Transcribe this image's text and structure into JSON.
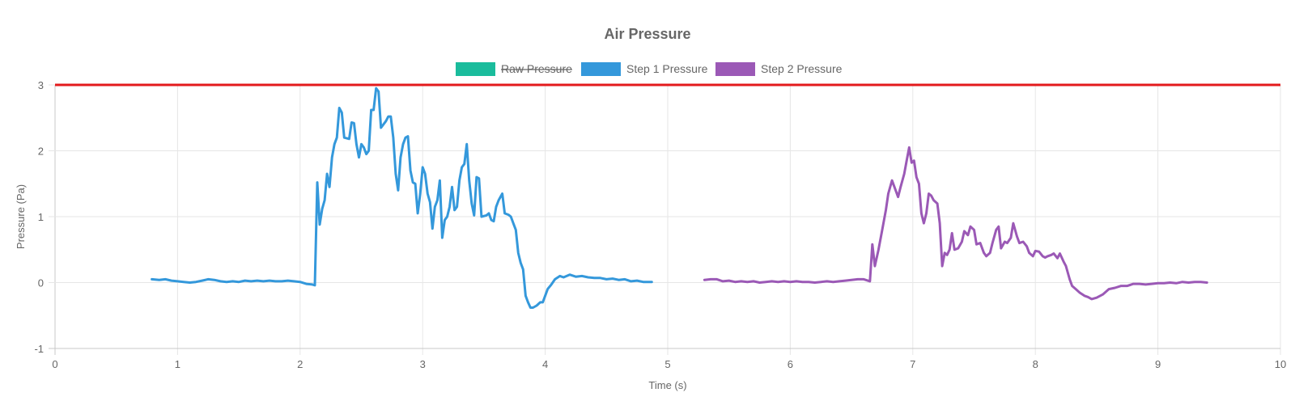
{
  "chart_data": {
    "type": "line",
    "title": "Air Pressure",
    "xlabel": "Time (s)",
    "ylabel": "Pressure (Pa)",
    "xlim": [
      0,
      10
    ],
    "ylim": [
      -1,
      3
    ],
    "x_ticks": [
      "0",
      "1",
      "2",
      "3",
      "4",
      "5",
      "6",
      "7",
      "8",
      "9",
      "10"
    ],
    "y_ticks": [
      "3",
      "2",
      "1",
      "0",
      "-1"
    ],
    "legend_position": "top-center",
    "grid": true,
    "threshold_line": {
      "value": 3,
      "color": "#e31a1c"
    },
    "series": [
      {
        "name": "Raw Pressure",
        "color": "#1abc9c",
        "hidden": true,
        "points": []
      },
      {
        "name": "Step 1 Pressure",
        "color": "#3498db",
        "hidden": false,
        "points": [
          [
            0.79,
            0.05
          ],
          [
            0.85,
            0.04
          ],
          [
            0.9,
            0.05
          ],
          [
            0.95,
            0.03
          ],
          [
            1.0,
            0.02
          ],
          [
            1.05,
            0.01
          ],
          [
            1.1,
            0.0
          ],
          [
            1.15,
            0.01
          ],
          [
            1.2,
            0.03
          ],
          [
            1.25,
            0.05
          ],
          [
            1.3,
            0.04
          ],
          [
            1.35,
            0.02
          ],
          [
            1.4,
            0.01
          ],
          [
            1.45,
            0.02
          ],
          [
            1.5,
            0.01
          ],
          [
            1.55,
            0.03
          ],
          [
            1.6,
            0.02
          ],
          [
            1.65,
            0.03
          ],
          [
            1.7,
            0.02
          ],
          [
            1.75,
            0.03
          ],
          [
            1.8,
            0.02
          ],
          [
            1.85,
            0.02
          ],
          [
            1.9,
            0.03
          ],
          [
            1.95,
            0.02
          ],
          [
            2.0,
            0.01
          ],
          [
            2.05,
            -0.02
          ],
          [
            2.1,
            -0.03
          ],
          [
            2.12,
            -0.04
          ],
          [
            2.14,
            1.52
          ],
          [
            2.16,
            0.88
          ],
          [
            2.18,
            1.12
          ],
          [
            2.2,
            1.25
          ],
          [
            2.22,
            1.65
          ],
          [
            2.24,
            1.45
          ],
          [
            2.26,
            1.9
          ],
          [
            2.28,
            2.1
          ],
          [
            2.3,
            2.2
          ],
          [
            2.32,
            2.65
          ],
          [
            2.34,
            2.58
          ],
          [
            2.36,
            2.2
          ],
          [
            2.4,
            2.18
          ],
          [
            2.42,
            2.43
          ],
          [
            2.44,
            2.42
          ],
          [
            2.46,
            2.1
          ],
          [
            2.48,
            1.9
          ],
          [
            2.5,
            2.1
          ],
          [
            2.52,
            2.05
          ],
          [
            2.54,
            1.95
          ],
          [
            2.56,
            2.0
          ],
          [
            2.58,
            2.62
          ],
          [
            2.6,
            2.62
          ],
          [
            2.62,
            2.95
          ],
          [
            2.64,
            2.9
          ],
          [
            2.66,
            2.35
          ],
          [
            2.7,
            2.45
          ],
          [
            2.72,
            2.52
          ],
          [
            2.74,
            2.52
          ],
          [
            2.76,
            2.2
          ],
          [
            2.78,
            1.65
          ],
          [
            2.8,
            1.4
          ],
          [
            2.82,
            1.9
          ],
          [
            2.84,
            2.1
          ],
          [
            2.86,
            2.2
          ],
          [
            2.88,
            2.22
          ],
          [
            2.9,
            1.7
          ],
          [
            2.92,
            1.52
          ],
          [
            2.94,
            1.5
          ],
          [
            2.96,
            1.05
          ],
          [
            2.98,
            1.35
          ],
          [
            3.0,
            1.75
          ],
          [
            3.02,
            1.65
          ],
          [
            3.04,
            1.35
          ],
          [
            3.06,
            1.22
          ],
          [
            3.08,
            0.82
          ],
          [
            3.1,
            1.15
          ],
          [
            3.12,
            1.25
          ],
          [
            3.14,
            1.55
          ],
          [
            3.16,
            0.68
          ],
          [
            3.18,
            0.95
          ],
          [
            3.2,
            1.0
          ],
          [
            3.22,
            1.15
          ],
          [
            3.24,
            1.45
          ],
          [
            3.26,
            1.1
          ],
          [
            3.28,
            1.15
          ],
          [
            3.3,
            1.55
          ],
          [
            3.32,
            1.75
          ],
          [
            3.34,
            1.8
          ],
          [
            3.36,
            2.1
          ],
          [
            3.38,
            1.55
          ],
          [
            3.4,
            1.2
          ],
          [
            3.42,
            1.02
          ],
          [
            3.44,
            1.6
          ],
          [
            3.46,
            1.58
          ],
          [
            3.48,
            1.0
          ],
          [
            3.52,
            1.02
          ],
          [
            3.54,
            1.05
          ],
          [
            3.56,
            0.95
          ],
          [
            3.58,
            0.93
          ],
          [
            3.6,
            1.15
          ],
          [
            3.62,
            1.25
          ],
          [
            3.65,
            1.35
          ],
          [
            3.67,
            1.05
          ],
          [
            3.7,
            1.03
          ],
          [
            3.72,
            1.0
          ],
          [
            3.74,
            0.9
          ],
          [
            3.76,
            0.8
          ],
          [
            3.78,
            0.45
          ],
          [
            3.8,
            0.3
          ],
          [
            3.82,
            0.2
          ],
          [
            3.84,
            -0.2
          ],
          [
            3.86,
            -0.3
          ],
          [
            3.88,
            -0.38
          ],
          [
            3.9,
            -0.38
          ],
          [
            3.93,
            -0.35
          ],
          [
            3.96,
            -0.3
          ],
          [
            3.98,
            -0.3
          ],
          [
            4.0,
            -0.2
          ],
          [
            4.02,
            -0.1
          ],
          [
            4.05,
            -0.03
          ],
          [
            4.08,
            0.05
          ],
          [
            4.12,
            0.1
          ],
          [
            4.15,
            0.08
          ],
          [
            4.2,
            0.12
          ],
          [
            4.25,
            0.09
          ],
          [
            4.3,
            0.1
          ],
          [
            4.35,
            0.08
          ],
          [
            4.4,
            0.07
          ],
          [
            4.45,
            0.07
          ],
          [
            4.5,
            0.05
          ],
          [
            4.55,
            0.06
          ],
          [
            4.6,
            0.04
          ],
          [
            4.65,
            0.05
          ],
          [
            4.7,
            0.02
          ],
          [
            4.75,
            0.03
          ],
          [
            4.8,
            0.01
          ],
          [
            4.87,
            0.01
          ]
        ]
      },
      {
        "name": "Step 2 Pressure",
        "color": "#9b59b6",
        "hidden": false,
        "points": [
          [
            5.3,
            0.04
          ],
          [
            5.35,
            0.05
          ],
          [
            5.4,
            0.05
          ],
          [
            5.45,
            0.02
          ],
          [
            5.5,
            0.03
          ],
          [
            5.55,
            0.01
          ],
          [
            5.6,
            0.02
          ],
          [
            5.65,
            0.01
          ],
          [
            5.7,
            0.02
          ],
          [
            5.75,
            0.0
          ],
          [
            5.8,
            0.01
          ],
          [
            5.85,
            0.02
          ],
          [
            5.9,
            0.01
          ],
          [
            5.95,
            0.02
          ],
          [
            6.0,
            0.01
          ],
          [
            6.05,
            0.02
          ],
          [
            6.1,
            0.01
          ],
          [
            6.15,
            0.01
          ],
          [
            6.2,
            0.0
          ],
          [
            6.25,
            0.01
          ],
          [
            6.3,
            0.02
          ],
          [
            6.35,
            0.01
          ],
          [
            6.4,
            0.02
          ],
          [
            6.45,
            0.03
          ],
          [
            6.5,
            0.04
          ],
          [
            6.55,
            0.05
          ],
          [
            6.6,
            0.05
          ],
          [
            6.65,
            0.02
          ],
          [
            6.67,
            0.58
          ],
          [
            6.69,
            0.25
          ],
          [
            6.72,
            0.5
          ],
          [
            6.75,
            0.8
          ],
          [
            6.78,
            1.1
          ],
          [
            6.8,
            1.35
          ],
          [
            6.83,
            1.55
          ],
          [
            6.86,
            1.4
          ],
          [
            6.88,
            1.3
          ],
          [
            6.9,
            1.45
          ],
          [
            6.93,
            1.65
          ],
          [
            6.95,
            1.85
          ],
          [
            6.97,
            2.05
          ],
          [
            6.99,
            1.82
          ],
          [
            7.01,
            1.85
          ],
          [
            7.03,
            1.6
          ],
          [
            7.05,
            1.5
          ],
          [
            7.07,
            1.05
          ],
          [
            7.09,
            0.9
          ],
          [
            7.11,
            1.05
          ],
          [
            7.13,
            1.35
          ],
          [
            7.15,
            1.32
          ],
          [
            7.17,
            1.25
          ],
          [
            7.2,
            1.2
          ],
          [
            7.22,
            0.9
          ],
          [
            7.24,
            0.25
          ],
          [
            7.26,
            0.45
          ],
          [
            7.28,
            0.42
          ],
          [
            7.3,
            0.5
          ],
          [
            7.32,
            0.75
          ],
          [
            7.34,
            0.5
          ],
          [
            7.37,
            0.52
          ],
          [
            7.4,
            0.62
          ],
          [
            7.42,
            0.78
          ],
          [
            7.45,
            0.72
          ],
          [
            7.47,
            0.85
          ],
          [
            7.5,
            0.8
          ],
          [
            7.52,
            0.58
          ],
          [
            7.55,
            0.6
          ],
          [
            7.58,
            0.45
          ],
          [
            7.6,
            0.4
          ],
          [
            7.63,
            0.45
          ],
          [
            7.65,
            0.6
          ],
          [
            7.68,
            0.8
          ],
          [
            7.7,
            0.85
          ],
          [
            7.72,
            0.52
          ],
          [
            7.75,
            0.62
          ],
          [
            7.77,
            0.6
          ],
          [
            7.8,
            0.68
          ],
          [
            7.82,
            0.9
          ],
          [
            7.85,
            0.7
          ],
          [
            7.87,
            0.6
          ],
          [
            7.9,
            0.62
          ],
          [
            7.93,
            0.55
          ],
          [
            7.95,
            0.45
          ],
          [
            7.98,
            0.4
          ],
          [
            8.0,
            0.48
          ],
          [
            8.03,
            0.47
          ],
          [
            8.06,
            0.4
          ],
          [
            8.08,
            0.38
          ],
          [
            8.1,
            0.4
          ],
          [
            8.13,
            0.42
          ],
          [
            8.15,
            0.44
          ],
          [
            8.18,
            0.37
          ],
          [
            8.2,
            0.44
          ],
          [
            8.23,
            0.32
          ],
          [
            8.25,
            0.25
          ],
          [
            8.28,
            0.05
          ],
          [
            8.3,
            -0.05
          ],
          [
            8.33,
            -0.1
          ],
          [
            8.36,
            -0.15
          ],
          [
            8.4,
            -0.2
          ],
          [
            8.43,
            -0.22
          ],
          [
            8.46,
            -0.25
          ],
          [
            8.5,
            -0.23
          ],
          [
            8.55,
            -0.18
          ],
          [
            8.6,
            -0.1
          ],
          [
            8.65,
            -0.08
          ],
          [
            8.7,
            -0.05
          ],
          [
            8.75,
            -0.05
          ],
          [
            8.8,
            -0.02
          ],
          [
            8.85,
            -0.02
          ],
          [
            8.9,
            -0.03
          ],
          [
            8.95,
            -0.02
          ],
          [
            9.0,
            -0.01
          ],
          [
            9.05,
            -0.01
          ],
          [
            9.1,
            0.0
          ],
          [
            9.15,
            -0.01
          ],
          [
            9.2,
            0.01
          ],
          [
            9.25,
            0.0
          ],
          [
            9.3,
            0.01
          ],
          [
            9.35,
            0.01
          ],
          [
            9.4,
            0.0
          ]
        ]
      }
    ]
  }
}
